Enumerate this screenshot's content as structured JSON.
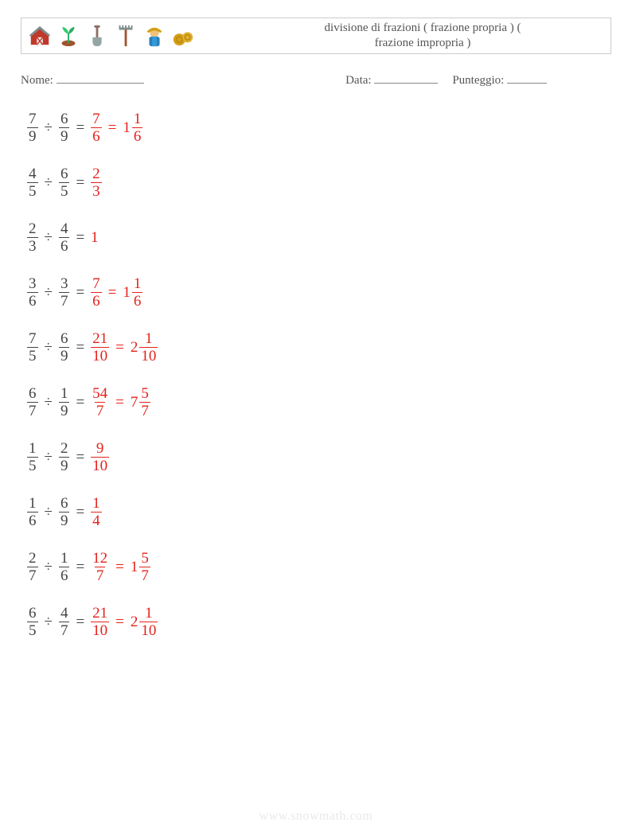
{
  "header": {
    "title_line1": "divisione di frazioni ( frazione propria ) (",
    "title_line2": "frazione impropria )",
    "icons": [
      "barn-icon",
      "sprout-icon",
      "shovel-icon",
      "rake-icon",
      "farmer-icon",
      "hay-icon"
    ]
  },
  "info": {
    "name_label": "Nome: ",
    "date_label": "Data: ",
    "score_label": "Punteggio: ",
    "name_blank_width": 110,
    "date_blank_width": 80,
    "score_blank_width": 50
  },
  "style": {
    "text_color": "#444444",
    "answer_color": "#e4221b",
    "font_size_body": 19,
    "font_size_header": 15,
    "divide_glyph": "÷",
    "equals_glyph": "="
  },
  "problems": [
    {
      "a": {
        "n": "7",
        "d": "9"
      },
      "b": {
        "n": "6",
        "d": "9"
      },
      "r1": {
        "n": "7",
        "d": "6"
      },
      "r2": {
        "w": "1",
        "n": "1",
        "d": "6"
      }
    },
    {
      "a": {
        "n": "4",
        "d": "5"
      },
      "b": {
        "n": "6",
        "d": "5"
      },
      "r1": {
        "n": "2",
        "d": "3"
      }
    },
    {
      "a": {
        "n": "2",
        "d": "3"
      },
      "b": {
        "n": "4",
        "d": "6"
      },
      "r1": {
        "int": "1"
      }
    },
    {
      "a": {
        "n": "3",
        "d": "6"
      },
      "b": {
        "n": "3",
        "d": "7"
      },
      "r1": {
        "n": "7",
        "d": "6"
      },
      "r2": {
        "w": "1",
        "n": "1",
        "d": "6"
      }
    },
    {
      "a": {
        "n": "7",
        "d": "5"
      },
      "b": {
        "n": "6",
        "d": "9"
      },
      "r1": {
        "n": "21",
        "d": "10"
      },
      "r2": {
        "w": "2",
        "n": "1",
        "d": "10"
      }
    },
    {
      "a": {
        "n": "6",
        "d": "7"
      },
      "b": {
        "n": "1",
        "d": "9"
      },
      "r1": {
        "n": "54",
        "d": "7"
      },
      "r2": {
        "w": "7",
        "n": "5",
        "d": "7"
      }
    },
    {
      "a": {
        "n": "1",
        "d": "5"
      },
      "b": {
        "n": "2",
        "d": "9"
      },
      "r1": {
        "n": "9",
        "d": "10"
      }
    },
    {
      "a": {
        "n": "1",
        "d": "6"
      },
      "b": {
        "n": "6",
        "d": "9"
      },
      "r1": {
        "n": "1",
        "d": "4"
      }
    },
    {
      "a": {
        "n": "2",
        "d": "7"
      },
      "b": {
        "n": "1",
        "d": "6"
      },
      "r1": {
        "n": "12",
        "d": "7"
      },
      "r2": {
        "w": "1",
        "n": "5",
        "d": "7"
      }
    },
    {
      "a": {
        "n": "6",
        "d": "5"
      },
      "b": {
        "n": "4",
        "d": "7"
      },
      "r1": {
        "n": "21",
        "d": "10"
      },
      "r2": {
        "w": "2",
        "n": "1",
        "d": "10"
      }
    }
  ],
  "watermark": "www.snowmath.com"
}
